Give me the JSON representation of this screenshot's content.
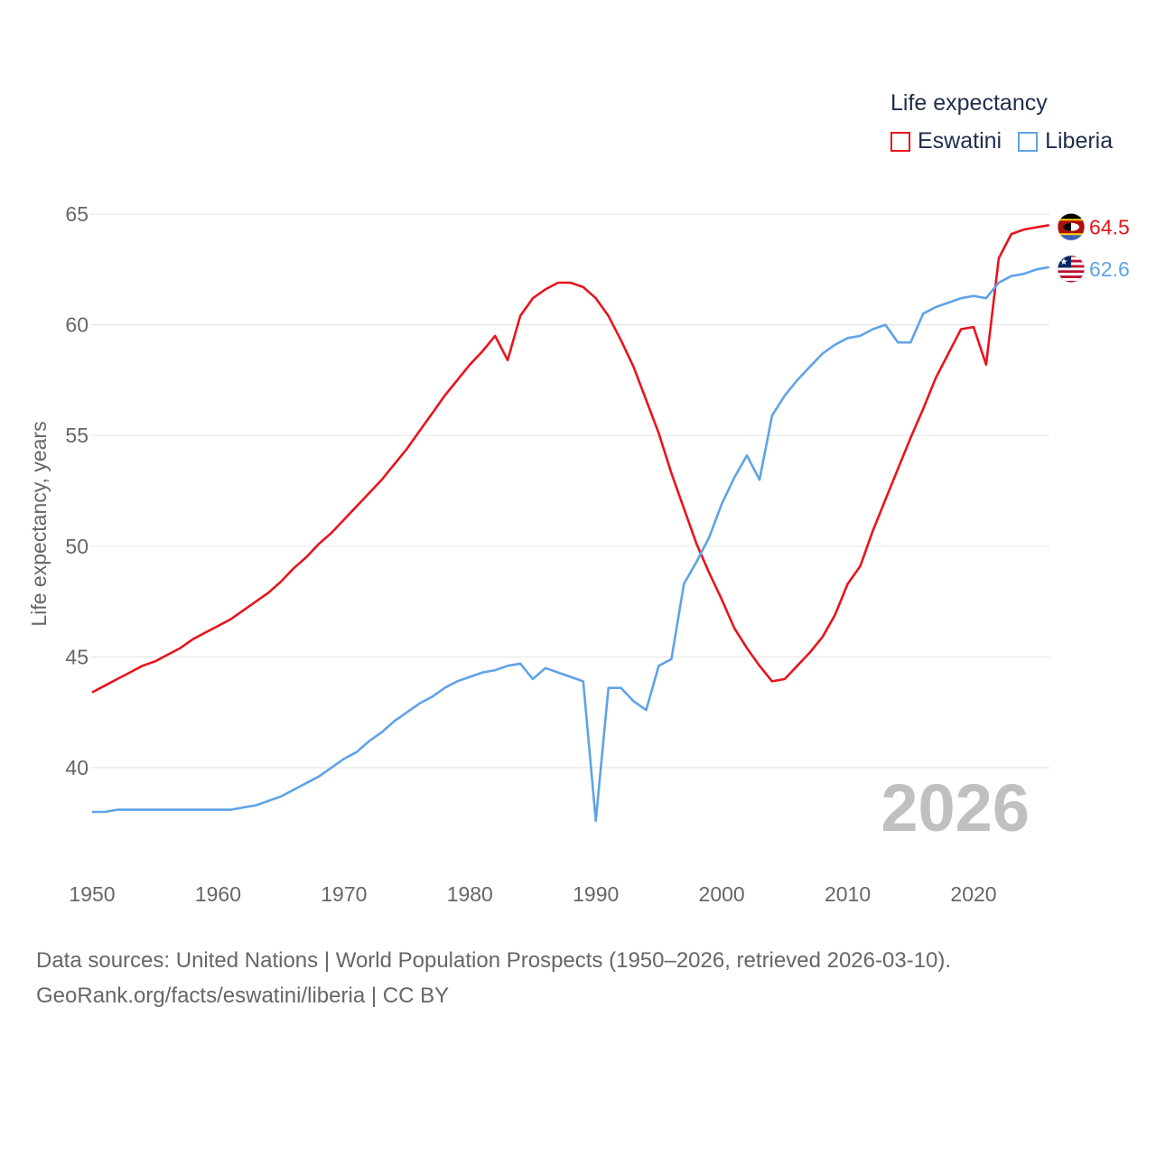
{
  "legend": {
    "title": "Life expectancy",
    "items": [
      {
        "name": "Eswatini",
        "color": "#e8141c"
      },
      {
        "name": "Liberia",
        "color": "#5fa3e6"
      }
    ]
  },
  "year_watermark": "2026",
  "source": {
    "line1": "Data sources: United Nations | World Population Prospects (1950–2026, retrieved 2026-03-10).",
    "line2": "GeoRank.org/facts/eswatini/liberia | CC BY"
  },
  "chart_data": {
    "type": "line",
    "title": "Life expectancy",
    "xlabel": "",
    "ylabel": "Life expectancy, years",
    "xlim": [
      1950,
      2026
    ],
    "ylim": [
      36,
      67
    ],
    "x_ticks": [
      1950,
      1960,
      1970,
      1980,
      1990,
      2000,
      2010,
      2020
    ],
    "y_ticks": [
      40,
      45,
      50,
      55,
      60,
      65
    ],
    "grid": true,
    "legend_position": "top-right",
    "end_labels": [
      {
        "series": "Eswatini",
        "text": "64.5",
        "color": "#e8141c",
        "flag": "eswatini-flag-icon"
      },
      {
        "series": "Liberia",
        "text": "62.6",
        "color": "#5fa3e6",
        "flag": "liberia-flag-icon"
      }
    ],
    "x": [
      1950,
      1951,
      1952,
      1953,
      1954,
      1955,
      1956,
      1957,
      1958,
      1959,
      1960,
      1961,
      1962,
      1963,
      1964,
      1965,
      1966,
      1967,
      1968,
      1969,
      1970,
      1971,
      1972,
      1973,
      1974,
      1975,
      1976,
      1977,
      1978,
      1979,
      1980,
      1981,
      1982,
      1983,
      1984,
      1985,
      1986,
      1987,
      1988,
      1989,
      1990,
      1991,
      1992,
      1993,
      1994,
      1995,
      1996,
      1997,
      1998,
      1999,
      2000,
      2001,
      2002,
      2003,
      2004,
      2005,
      2006,
      2007,
      2008,
      2009,
      2010,
      2011,
      2012,
      2013,
      2014,
      2015,
      2016,
      2017,
      2018,
      2019,
      2020,
      2021,
      2022,
      2023,
      2024,
      2025,
      2026
    ],
    "series": [
      {
        "name": "Eswatini",
        "color": "#e8141c",
        "values": [
          43.4,
          43.7,
          44.0,
          44.3,
          44.6,
          44.8,
          45.1,
          45.4,
          45.8,
          46.1,
          46.4,
          46.7,
          47.1,
          47.5,
          47.9,
          48.4,
          49.0,
          49.5,
          50.1,
          50.6,
          51.2,
          51.8,
          52.4,
          53.0,
          53.7,
          54.4,
          55.2,
          56.0,
          56.8,
          57.5,
          58.2,
          58.8,
          59.5,
          58.4,
          60.4,
          61.2,
          61.6,
          61.9,
          61.9,
          61.7,
          61.2,
          60.4,
          59.3,
          58.1,
          56.6,
          55.1,
          53.3,
          51.7,
          50.1,
          48.8,
          47.6,
          46.3,
          45.4,
          44.6,
          43.9,
          44.0,
          44.6,
          45.2,
          45.9,
          46.9,
          48.3,
          49.1,
          50.7,
          52.1,
          53.5,
          54.9,
          56.2,
          57.6,
          58.7,
          59.8,
          59.9,
          58.2,
          63.0,
          64.1,
          64.3,
          64.4,
          64.5
        ]
      },
      {
        "name": "Liberia",
        "color": "#5fa3e6",
        "values": [
          38.0,
          38.0,
          38.1,
          38.1,
          38.1,
          38.1,
          38.1,
          38.1,
          38.1,
          38.1,
          38.1,
          38.1,
          38.2,
          38.3,
          38.5,
          38.7,
          39.0,
          39.3,
          39.6,
          40.0,
          40.4,
          40.7,
          41.2,
          41.6,
          42.1,
          42.5,
          42.9,
          43.2,
          43.6,
          43.9,
          44.1,
          44.3,
          44.4,
          44.6,
          44.7,
          44.0,
          44.5,
          44.3,
          44.1,
          43.9,
          37.6,
          43.6,
          43.6,
          43.0,
          42.6,
          44.6,
          44.9,
          48.3,
          49.3,
          50.4,
          51.9,
          53.1,
          54.1,
          53.0,
          55.9,
          56.8,
          57.5,
          58.1,
          58.7,
          59.1,
          59.4,
          59.5,
          59.8,
          60.0,
          59.2,
          59.2,
          60.5,
          60.8,
          61.0,
          61.2,
          61.3,
          61.2,
          61.9,
          62.2,
          62.3,
          62.5,
          62.6
        ]
      }
    ]
  }
}
